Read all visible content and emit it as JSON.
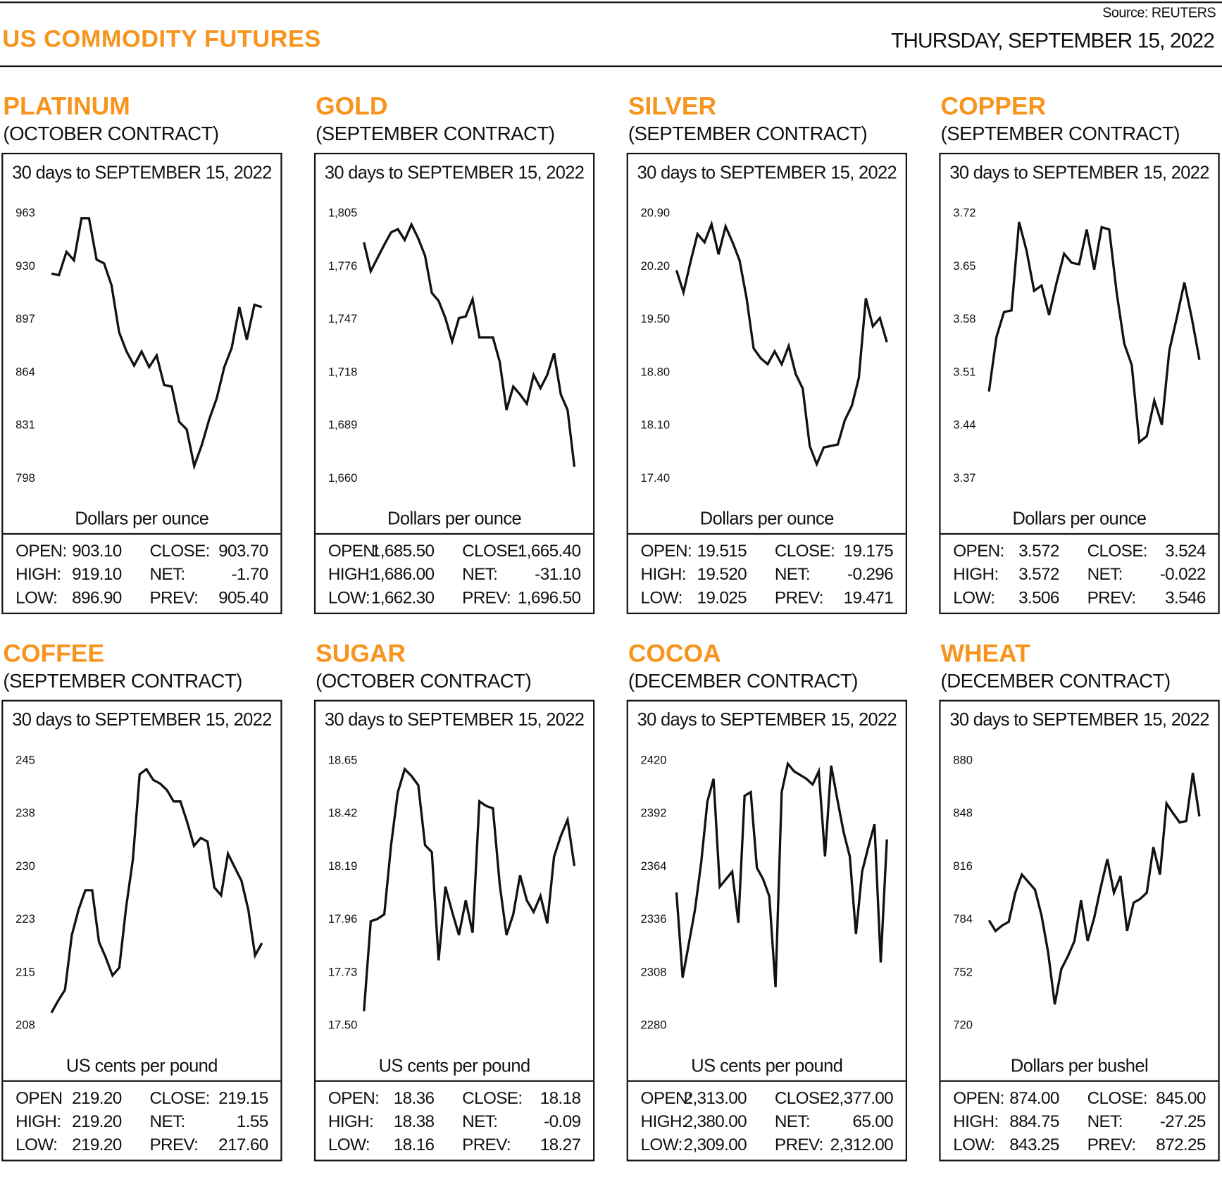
{
  "header": {
    "source": "Source: REUTERS",
    "title": "US COMMODITY FUTURES",
    "date": "THURSDAY, SEPTEMBER 15, 2022",
    "accent_color": "#f7941d"
  },
  "panels": [
    {
      "name": "PLATINUM",
      "contract": "(OCTOBER CONTRACT)",
      "stats": [
        {
          "l1": "OPEN:",
          "v1": "903.10",
          "l2": "CLOSE:",
          "v2": "903.70"
        },
        {
          "l1": "HIGH:",
          "v1": "919.10",
          "l2": "NET:",
          "v2": "-1.70"
        },
        {
          "l1": "LOW:",
          "v1": "896.90",
          "l2": "PREV:",
          "v2": "905.40"
        }
      ]
    },
    {
      "name": "GOLD",
      "contract": "(SEPTEMBER CONTRACT)",
      "stats": [
        {
          "l1": "OPEN:",
          "v1": "1,685.50",
          "l2": "CLOSE:",
          "v2": "1,665.40"
        },
        {
          "l1": "HIGH:",
          "v1": "1,686.00",
          "l2": "NET:",
          "v2": "-31.10"
        },
        {
          "l1": "LOW:",
          "v1": "1,662.30",
          "l2": "PREV:",
          "v2": "1,696.50"
        }
      ]
    },
    {
      "name": "SILVER",
      "contract": "(SEPTEMBER CONTRACT)",
      "stats": [
        {
          "l1": "OPEN:",
          "v1": "19.515",
          "l2": "CLOSE:",
          "v2": "19.175"
        },
        {
          "l1": "HIGH:",
          "v1": "19.520",
          "l2": "NET:",
          "v2": "-0.296"
        },
        {
          "l1": "LOW:",
          "v1": "19.025",
          "l2": "PREV:",
          "v2": "19.471"
        }
      ]
    },
    {
      "name": "COPPER",
      "contract": "(SEPTEMBER CONTRACT)",
      "stats": [
        {
          "l1": "OPEN:",
          "v1": "3.572",
          "l2": "CLOSE:",
          "v2": "3.524"
        },
        {
          "l1": "HIGH:",
          "v1": "3.572",
          "l2": "NET:",
          "v2": "-0.022"
        },
        {
          "l1": "LOW:",
          "v1": "3.506",
          "l2": "PREV:",
          "v2": "3.546"
        }
      ]
    },
    {
      "name": "COFFEE",
      "contract": "(SEPTEMBER CONTRACT)",
      "stats": [
        {
          "l1": "OPEN",
          "v1": "219.20",
          "l2": "CLOSE:",
          "v2": "219.15"
        },
        {
          "l1": "HIGH:",
          "v1": "219.20",
          "l2": "NET:",
          "v2": "1.55"
        },
        {
          "l1": "LOW:",
          "v1": "219.20",
          "l2": "PREV:",
          "v2": "217.60"
        }
      ]
    },
    {
      "name": "SUGAR",
      "contract": "(OCTOBER CONTRACT)",
      "stats": [
        {
          "l1": "OPEN:",
          "v1": "18.36",
          "l2": "CLOSE:",
          "v2": "18.18"
        },
        {
          "l1": "HIGH:",
          "v1": "18.38",
          "l2": "NET:",
          "v2": "-0.09"
        },
        {
          "l1": "LOW:",
          "v1": "18.16",
          "l2": "PREV:",
          "v2": "18.27"
        }
      ]
    },
    {
      "name": "COCOA",
      "contract": "(DECEMBER CONTRACT)",
      "stats": [
        {
          "l1": "OPEN:",
          "v1": "2,313.00",
          "l2": "CLOSE:",
          "v2": "2,377.00"
        },
        {
          "l1": "HIGH:",
          "v1": "2,380.00",
          "l2": "NET:",
          "v2": "65.00"
        },
        {
          "l1": "LOW:",
          "v1": "2,309.00",
          "l2": "PREV:",
          "v2": "2,312.00"
        }
      ]
    },
    {
      "name": "WHEAT",
      "contract": "(DECEMBER CONTRACT)",
      "stats": [
        {
          "l1": "OPEN:",
          "v1": "874.00",
          "l2": "CLOSE:",
          "v2": "845.00"
        },
        {
          "l1": "HIGH:",
          "v1": "884.75",
          "l2": "NET:",
          "v2": "-27.25"
        },
        {
          "l1": "LOW:",
          "v1": "843.25",
          "l2": "PREV:",
          "v2": "872.25"
        }
      ]
    }
  ],
  "chart_data": [
    {
      "type": "line",
      "title": "30 days to SEPTEMBER 15, 2022",
      "ylabel": "Dollars per ounce",
      "yticks": [
        "963",
        "930",
        "897",
        "864",
        "831",
        "798"
      ],
      "ylim": [
        798,
        963
      ],
      "grid": false,
      "values": [
        925.1,
        924.2,
        938.7,
        933.4,
        959.6,
        959.6,
        933.9,
        931.5,
        917.9,
        888.7,
        876.6,
        867.9,
        876.6,
        866.9,
        874.2,
        855.8,
        854.8,
        832.9,
        828.1,
        805.3,
        818.4,
        834.4,
        847.5,
        866.9,
        879.0,
        904.3,
        883.9,
        905.7,
        904.3
      ]
    },
    {
      "type": "line",
      "title": "30 days to SEPTEMBER 15, 2022",
      "ylabel": "Dollars per ounce",
      "yticks": [
        "1,805",
        "1,776",
        "1,747",
        "1,718",
        "1,689",
        "1,660"
      ],
      "ylim": [
        1660,
        1805
      ],
      "grid": false,
      "values": [
        1788.8,
        1773.0,
        1780.3,
        1787.5,
        1794.3,
        1796.0,
        1790.1,
        1798.6,
        1790.9,
        1781.5,
        1761.1,
        1756.8,
        1747.4,
        1734.6,
        1747.4,
        1748.3,
        1757.7,
        1736.8,
        1736.8,
        1736.8,
        1723.5,
        1697.1,
        1709.9,
        1705.6,
        1700.5,
        1716.3,
        1709.0,
        1716.3,
        1728.2,
        1705.6,
        1697.1,
        1666.0
      ]
    },
    {
      "type": "line",
      "title": "30 days to SEPTEMBER 15, 2022",
      "ylabel": "Dollars per ounce",
      "yticks": [
        "20.90",
        "20.20",
        "19.50",
        "18.80",
        "18.10",
        "17.40"
      ],
      "ylim": [
        17.4,
        20.9
      ],
      "grid": false,
      "values": [
        20.14,
        19.85,
        20.25,
        20.62,
        20.51,
        20.75,
        20.35,
        20.72,
        20.51,
        20.27,
        19.77,
        19.11,
        18.98,
        18.9,
        19.07,
        18.9,
        19.14,
        18.77,
        18.58,
        17.82,
        17.58,
        17.8,
        17.82,
        17.84,
        18.16,
        18.35,
        18.72,
        19.77,
        19.4,
        19.51,
        19.19
      ]
    },
    {
      "type": "line",
      "title": "30 days to SEPTEMBER 15, 2022",
      "ylabel": "Dollars per ounce",
      "yticks": [
        "3.72",
        "3.65",
        "3.58",
        "3.51",
        "3.44",
        "3.37"
      ],
      "ylim": [
        3.37,
        3.72
      ],
      "grid": false,
      "values": [
        3.484,
        3.556,
        3.589,
        3.591,
        3.708,
        3.67,
        3.617,
        3.624,
        3.585,
        3.628,
        3.666,
        3.654,
        3.652,
        3.698,
        3.645,
        3.701,
        3.698,
        3.614,
        3.547,
        3.519,
        3.417,
        3.425,
        3.472,
        3.44,
        3.538,
        3.582,
        3.628,
        3.58,
        3.526
      ]
    },
    {
      "type": "line",
      "title": "30 days to SEPTEMBER 15, 2022",
      "ylabel": "US cents per pound",
      "yticks": [
        "245",
        "238",
        "230",
        "223",
        "215",
        "208"
      ],
      "ylim": [
        208,
        245
      ],
      "grid": false,
      "values": [
        209.7,
        211.4,
        212.9,
        220.5,
        224.1,
        226.8,
        226.8,
        219.6,
        217.4,
        214.9,
        216.0,
        224.4,
        231.1,
        243.0,
        243.7,
        242.2,
        241.7,
        240.8,
        239.2,
        239.2,
        236.3,
        233.0,
        234.1,
        233.6,
        227.2,
        226.1,
        231.9,
        230.0,
        228.1,
        224.1,
        217.7,
        219.4
      ]
    },
    {
      "type": "line",
      "title": "30 days to SEPTEMBER 15, 2022",
      "ylabel": "US cents per pound",
      "yticks": [
        "18.65",
        "18.42",
        "18.19",
        "17.96",
        "17.73",
        "17.50"
      ],
      "ylim": [
        17.5,
        18.65
      ],
      "grid": false,
      "values": [
        17.56,
        17.95,
        17.96,
        17.98,
        18.28,
        18.51,
        18.61,
        18.58,
        18.54,
        18.28,
        18.25,
        17.78,
        18.1,
        17.99,
        17.89,
        18.04,
        17.9,
        18.47,
        18.45,
        18.44,
        18.11,
        17.89,
        17.98,
        18.15,
        18.04,
        17.99,
        18.06,
        17.94,
        18.23,
        18.32,
        18.39,
        18.19
      ]
    },
    {
      "type": "line",
      "title": "30 days to SEPTEMBER 15, 2022",
      "ylabel": "US cents per pound",
      "yticks": [
        "2420",
        "2392",
        "2364",
        "2336",
        "2308",
        "2280"
      ],
      "ylim": [
        2280,
        2420
      ],
      "grid": false,
      "values": [
        2350,
        2305,
        2323,
        2341,
        2366,
        2398,
        2410,
        2353,
        2357,
        2361,
        2334,
        2401,
        2403,
        2363,
        2357,
        2348,
        2300,
        2403,
        2418,
        2414,
        2412,
        2410,
        2407,
        2414,
        2369,
        2417,
        2399,
        2382,
        2369,
        2328,
        2361,
        2374,
        2386,
        2313,
        2378
      ]
    },
    {
      "type": "line",
      "title": "30 days to SEPTEMBER 15, 2022",
      "ylabel": "Dollars per bushel",
      "yticks": [
        "880",
        "848",
        "816",
        "784",
        "752",
        "720"
      ],
      "ylim": [
        720,
        880
      ],
      "grid": false,
      "values": [
        783.2,
        776.7,
        780.0,
        782.2,
        799.8,
        810.8,
        806.2,
        801.6,
        785.9,
        763.8,
        732.4,
        753.7,
        761.5,
        770.7,
        795.2,
        770.7,
        784.6,
        803.0,
        820.1,
        799.8,
        809.9,
        776.7,
        793.8,
        796.1,
        799.8,
        827.4,
        810.8,
        853.7,
        847.7,
        842.2,
        843.1,
        872.2,
        845.9
      ]
    }
  ]
}
